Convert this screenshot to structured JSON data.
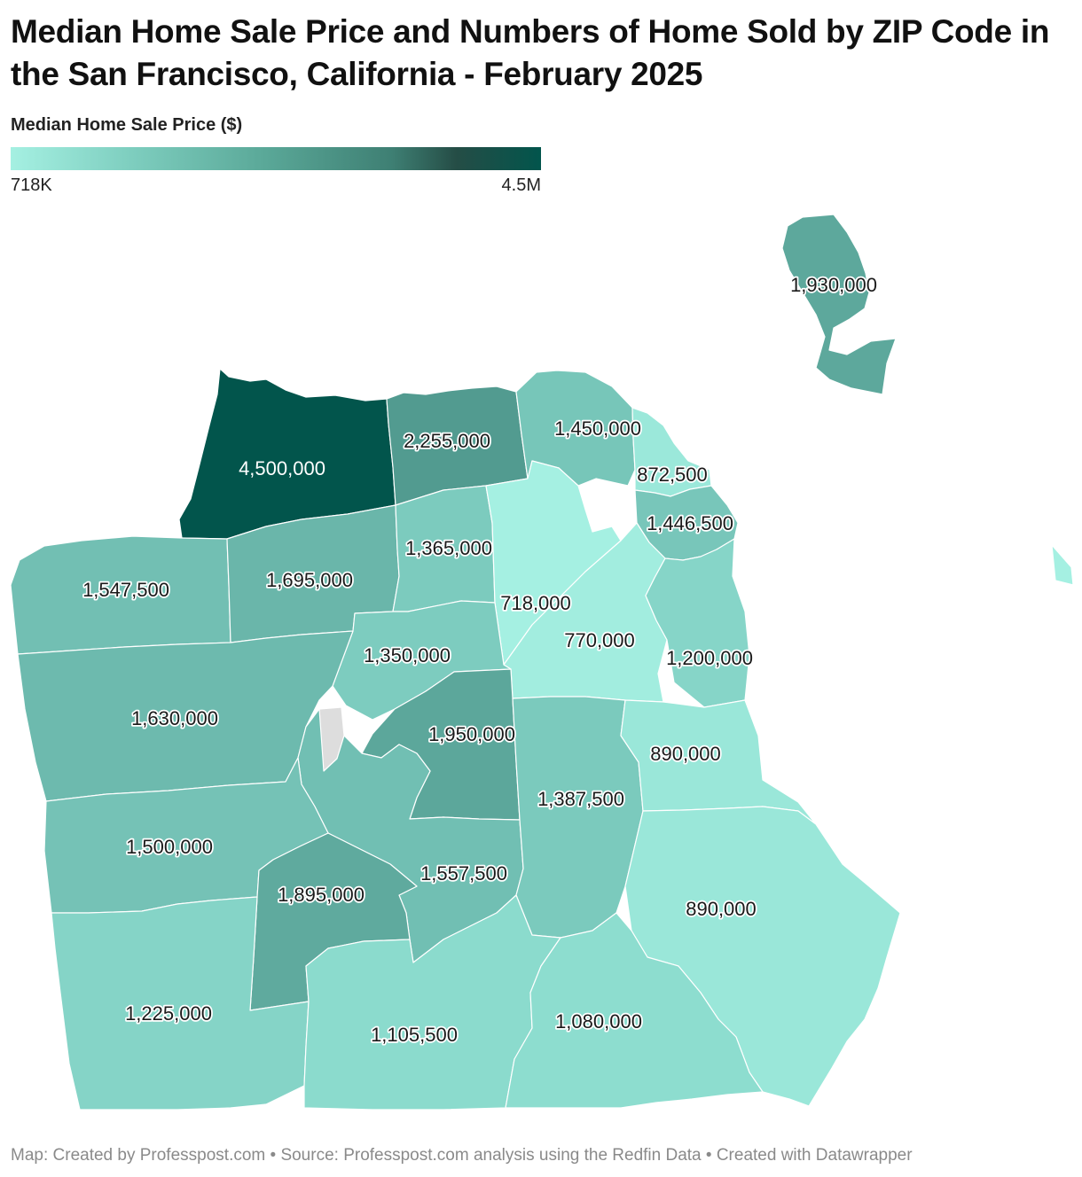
{
  "title": "Median Home Sale Price and Numbers of Home Sold by ZIP Code in the San Francisco, California - February 2025",
  "legend": {
    "title": "Median Home Sale Price ($)",
    "min_label": "718K",
    "max_label": "4.5M",
    "min_value": 718000,
    "max_value": 4500000,
    "color_low": "#a5f0e2",
    "color_high": "#02554c"
  },
  "map_data": {
    "no_data_color": "#dddddd",
    "regions": [
      {
        "id": "seacliff-presidio",
        "value": "4,500,000",
        "price": 4500000
      },
      {
        "id": "pacific-heights-marina",
        "value": "2,255,000",
        "price": 2255000
      },
      {
        "id": "north-beach",
        "value": "1,450,000",
        "price": 1450000
      },
      {
        "id": "financial-district",
        "value": "872,500",
        "price": 872500
      },
      {
        "id": "rincon-embarcadero",
        "value": "1,446,500",
        "price": 1446500
      },
      {
        "id": "outer-richmond",
        "value": "1,547,500",
        "price": 1547500
      },
      {
        "id": "inner-richmond",
        "value": "1,695,000",
        "price": 1695000
      },
      {
        "id": "western-addition-north",
        "value": "1,365,000",
        "price": 1365000
      },
      {
        "id": "tenderloin",
        "value": "718,000",
        "price": 718000
      },
      {
        "id": "soma",
        "value": "770,000",
        "price": 770000
      },
      {
        "id": "haight-ashbury",
        "value": "1,350,000",
        "price": 1350000
      },
      {
        "id": "potrero-hill",
        "value": "1,200,000",
        "price": 1200000
      },
      {
        "id": "outer-sunset",
        "value": "1,630,000",
        "price": 1630000
      },
      {
        "id": "noe-castro",
        "value": "1,950,000",
        "price": 1950000
      },
      {
        "id": "dogpatch-bayview-north",
        "value": "890,000",
        "price": 890000
      },
      {
        "id": "mission",
        "value": "1,387,500",
        "price": 1387500
      },
      {
        "id": "parkside",
        "value": "1,500,000",
        "price": 1500000
      },
      {
        "id": "glen-park-diamond-heights",
        "value": "1,557,500",
        "price": 1557500
      },
      {
        "id": "west-portal-st-francis-wood",
        "value": "1,895,000",
        "price": 1895000
      },
      {
        "id": "bayview-hunters-point",
        "value": "890,000",
        "price": 890000
      },
      {
        "id": "lake-merced",
        "value": "1,225,000",
        "price": 1225000
      },
      {
        "id": "ingleside-oceanview",
        "value": "1,105,500",
        "price": 1105500
      },
      {
        "id": "excelsior-visitacion",
        "value": "1,080,000",
        "price": 1080000
      },
      {
        "id": "treasure-island",
        "value": "1,930,000",
        "price": 1930000
      },
      {
        "id": "twin-peaks",
        "value": "",
        "price": null
      }
    ]
  },
  "footer": "Map: Created by Professpost.com • Source: Professpost.com analysis using the Redfin Data  • Created with Datawrapper"
}
